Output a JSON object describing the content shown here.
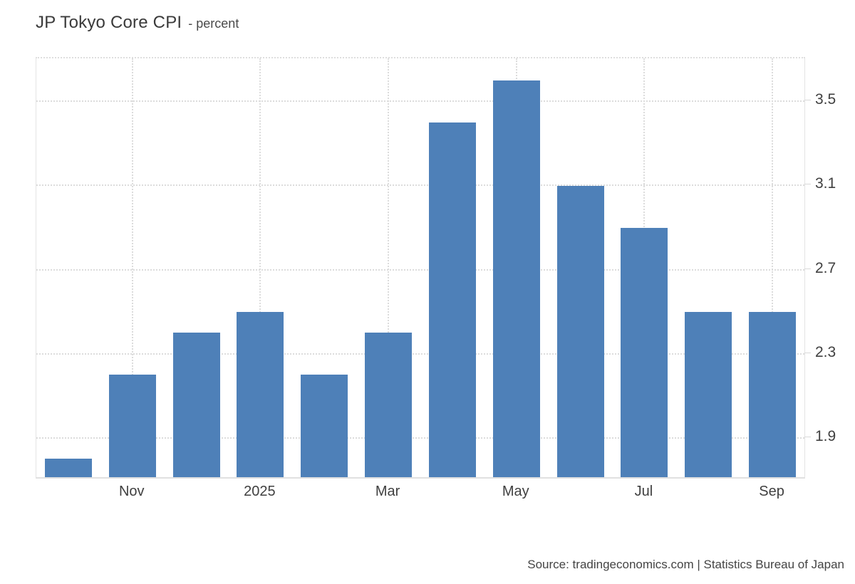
{
  "header": {
    "title": "JP Tokyo Core CPI",
    "subtitle": "- percent"
  },
  "footer": {
    "source": "Source: tradingeconomics.com | Statistics Bureau of Japan"
  },
  "colors": {
    "bar": "#4e80b8",
    "gridline": "#dcdcdc",
    "axis_border": "#e2e2e2",
    "tick_text": "#404040",
    "title_text": "#3a3a3a",
    "background": "#ffffff"
  },
  "chart_data": {
    "type": "bar",
    "title": "JP Tokyo Core CPI",
    "ylabel": "percent",
    "categories": [
      "",
      "Nov",
      "",
      "2025",
      "",
      "Mar",
      "",
      "May",
      "",
      "Jul",
      "",
      "Sep"
    ],
    "values": [
      1.8,
      2.2,
      2.4,
      2.5,
      2.2,
      2.4,
      3.4,
      3.6,
      3.1,
      2.9,
      2.5,
      2.5
    ],
    "y_ticks": [
      1.9,
      2.3,
      2.7,
      3.1,
      3.5
    ],
    "ylim": [
      1.712,
      3.705
    ],
    "y_axis_side": "right",
    "grid": true,
    "legend": false,
    "bar_color": "#4e80b8"
  }
}
